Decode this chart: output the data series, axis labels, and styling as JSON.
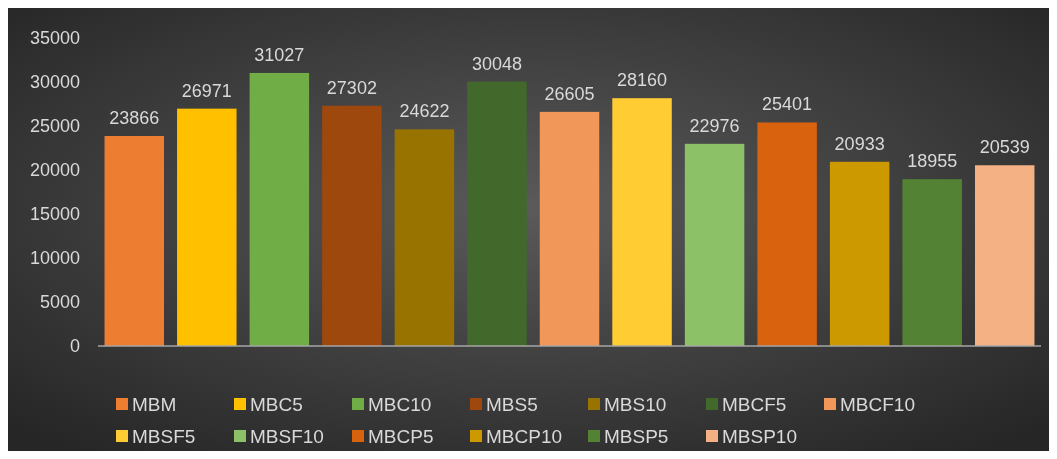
{
  "chart_data": {
    "type": "bar",
    "categories": [
      null,
      null,
      null,
      null,
      null,
      null,
      null,
      null,
      null,
      null,
      null,
      null,
      null
    ],
    "series": [
      {
        "name": "MBM",
        "color": "#ed7d31",
        "values": [
          23866,
          null,
          null,
          null,
          null,
          null,
          null,
          null,
          null,
          null,
          null,
          null,
          null
        ]
      },
      {
        "name": "MBC5",
        "color": "#ffc000",
        "values": [
          null,
          26971,
          null,
          null,
          null,
          null,
          null,
          null,
          null,
          null,
          null,
          null,
          null
        ]
      },
      {
        "name": "MBC10",
        "color": "#70ad47",
        "values": [
          null,
          null,
          31027,
          null,
          null,
          null,
          null,
          null,
          null,
          null,
          null,
          null,
          null
        ]
      },
      {
        "name": "MBS5",
        "color": "#9e480e",
        "values": [
          null,
          null,
          null,
          27302,
          null,
          null,
          null,
          null,
          null,
          null,
          null,
          null,
          null
        ]
      },
      {
        "name": "MBS10",
        "color": "#997300",
        "values": [
          null,
          null,
          null,
          null,
          24622,
          null,
          null,
          null,
          null,
          null,
          null,
          null,
          null
        ]
      },
      {
        "name": "MBCF5",
        "color": "#43682b",
        "values": [
          null,
          null,
          null,
          null,
          null,
          30048,
          null,
          null,
          null,
          null,
          null,
          null,
          null
        ]
      },
      {
        "name": "MBCF10",
        "color": "#f1975a",
        "values": [
          null,
          null,
          null,
          null,
          null,
          null,
          26605,
          null,
          null,
          null,
          null,
          null,
          null
        ]
      },
      {
        "name": "MBSF5",
        "color": "#ffcd33",
        "values": [
          null,
          null,
          null,
          null,
          null,
          null,
          null,
          28160,
          null,
          null,
          null,
          null,
          null
        ]
      },
      {
        "name": "MBSF10",
        "color": "#8cc168",
        "values": [
          null,
          null,
          null,
          null,
          null,
          null,
          null,
          null,
          22976,
          null,
          null,
          null,
          null
        ]
      },
      {
        "name": "MBCP5",
        "color": "#d9620f",
        "values": [
          null,
          null,
          null,
          null,
          null,
          null,
          null,
          null,
          null,
          25401,
          null,
          null,
          null
        ]
      },
      {
        "name": "MBCP10",
        "color": "#cc9a00",
        "values": [
          null,
          null,
          null,
          null,
          null,
          null,
          null,
          null,
          null,
          null,
          20933,
          null,
          null
        ]
      },
      {
        "name": "MBSP5",
        "color": "#548235",
        "values": [
          null,
          null,
          null,
          null,
          null,
          null,
          null,
          null,
          null,
          null,
          null,
          18955,
          null
        ]
      },
      {
        "name": "MBSP10",
        "color": "#f4b183",
        "values": [
          null,
          null,
          null,
          null,
          null,
          null,
          null,
          null,
          null,
          null,
          null,
          null,
          20539
        ]
      }
    ],
    "ylim": [
      0,
      35000
    ],
    "yticks": [
      0,
      5000,
      10000,
      15000,
      20000,
      25000,
      30000,
      35000
    ],
    "data_labels": true,
    "legend": "bottom"
  }
}
